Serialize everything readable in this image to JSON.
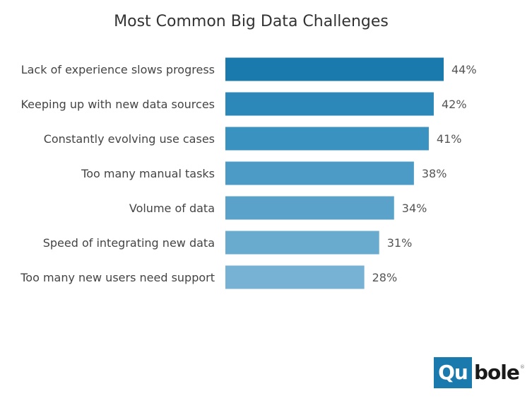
{
  "chart_data": {
    "type": "bar",
    "orientation": "horizontal",
    "title": "Most Common Big Data Challenges",
    "categories": [
      "Lack of experience slows progress",
      "Keeping up with new data sources",
      "Constantly evolving use cases",
      "Too many manual tasks",
      "Volume of data",
      "Speed of integrating new data",
      "Too many new users need support"
    ],
    "values": [
      44,
      42,
      41,
      38,
      34,
      31,
      28
    ],
    "value_labels": [
      "44%",
      "42%",
      "41%",
      "38%",
      "34%",
      "31%",
      "28%"
    ],
    "value_unit": "%",
    "xlim": [
      0,
      100
    ],
    "grid": false,
    "legend": "none",
    "bar_colors": [
      "#1a79ad",
      "#2b88b8",
      "#3a92c0",
      "#4b9bc6",
      "#5aa2c9",
      "#69abcf",
      "#77b2d4"
    ]
  },
  "logo": {
    "box_text": "Qu",
    "rest_text": "bole",
    "mark": "®",
    "box_color": "#1a79ad"
  }
}
